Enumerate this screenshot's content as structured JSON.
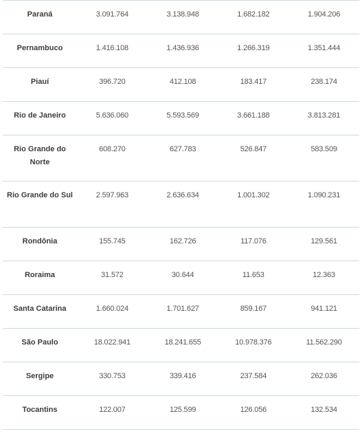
{
  "table": {
    "rows": [
      {
        "state": "Paraná",
        "c1": "3.091.764",
        "c2": "3.138.948",
        "c3": "1.682.182",
        "c4": "1.904.206"
      },
      {
        "state": "Pernambuco",
        "c1": "1.416.108",
        "c2": "1.436.936",
        "c3": "1.266.319",
        "c4": "1.351.444"
      },
      {
        "state": "Piauí",
        "c1": "396.720",
        "c2": "412.108",
        "c3": "183.417",
        "c4": "238.174"
      },
      {
        "state": "Rio de Janeiro",
        "c1": "5.636.060",
        "c2": "5.593.569",
        "c3": "3.661.188",
        "c4": "3.813.281"
      },
      {
        "state": "Rio Grande do Norte",
        "c1": "608.270",
        "c2": "627.783",
        "c3": "526.847",
        "c4": "583.509"
      },
      {
        "state": "Rio Grande do Sul",
        "c1": "2.597.963",
        "c2": "2.636.634",
        "c3": "1.001.302",
        "c4": "1.090.231"
      },
      {
        "state": "Rondônia",
        "c1": "155.745",
        "c2": "162.726",
        "c3": "117.076",
        "c4": "129.561"
      },
      {
        "state": "Roraima",
        "c1": "31.572",
        "c2": "30.644",
        "c3": "11.653",
        "c4": "12.363"
      },
      {
        "state": "Santa Catarina",
        "c1": "1.660.024",
        "c2": "1.701.627",
        "c3": "859.167",
        "c4": "941.121"
      },
      {
        "state": "São Paulo",
        "c1": "18.022.941",
        "c2": "18.241.655",
        "c3": "10.978.376",
        "c4": "11.562.290"
      },
      {
        "state": "Sergipe",
        "c1": "330.753",
        "c2": "339.416",
        "c3": "237.584",
        "c4": "262.036"
      },
      {
        "state": "Tocantins",
        "c1": "122.007",
        "c2": "125.599",
        "c3": "126.056",
        "c4": "132.534"
      }
    ]
  }
}
